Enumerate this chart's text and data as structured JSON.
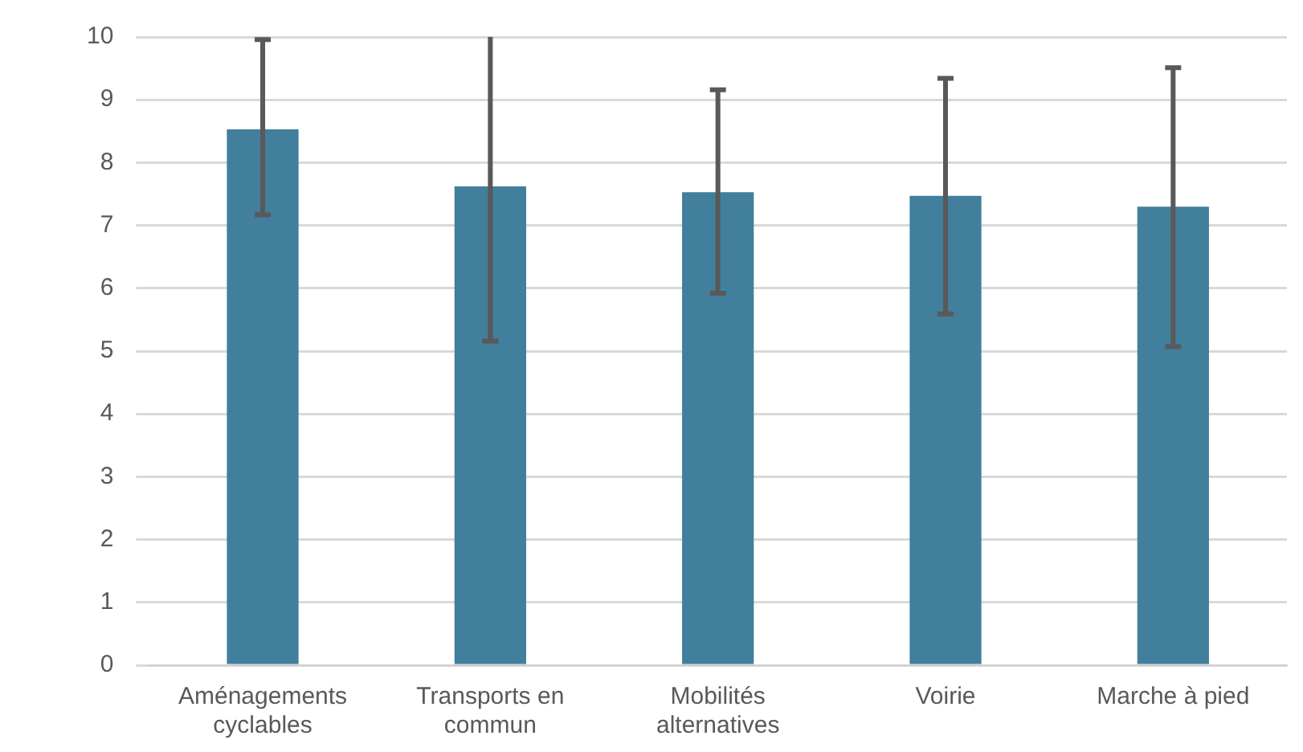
{
  "chart_data": {
    "type": "bar",
    "categories": [
      "Aménagements cyclables",
      "Transports en commun",
      "Mobilités alternatives",
      "Voirie",
      "Marche à pied"
    ],
    "values": [
      8.53,
      7.62,
      7.53,
      7.47,
      7.3
    ],
    "errors": [
      [
        7.17,
        9.96
      ],
      [
        5.16,
        10
      ],
      [
        5.92,
        9.16
      ],
      [
        5.59,
        9.34
      ],
      [
        5.07,
        9.51
      ]
    ],
    "color": "#417f9c",
    "ylim": [
      0,
      10
    ],
    "yticks": [
      0,
      1,
      2,
      3,
      4,
      5,
      6,
      7,
      8,
      9,
      10
    ],
    "grid": "y"
  }
}
